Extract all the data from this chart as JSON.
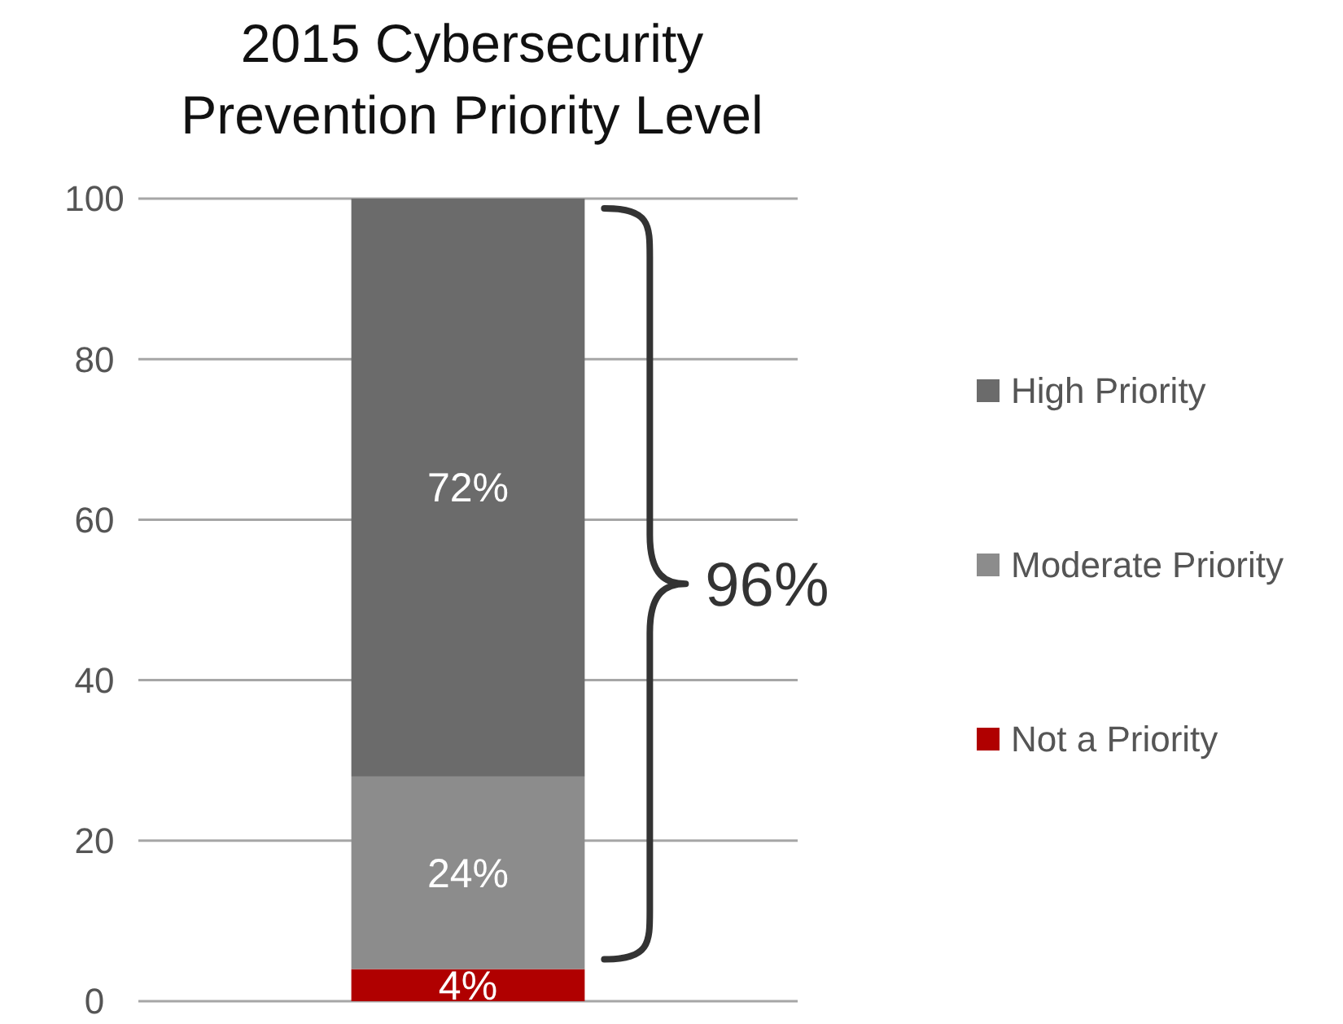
{
  "chart_data": {
    "type": "bar",
    "title": "2015 Cybersecurity Prevention Priority Level",
    "categories": [
      null
    ],
    "stacked": true,
    "ylim": [
      0,
      100
    ],
    "yticks": [
      0,
      20,
      40,
      60,
      80,
      100
    ],
    "grid": "y",
    "legend": "right",
    "series": [
      {
        "name": "Not a Priority",
        "color": "#b00000",
        "values": [
          4
        ],
        "value_labels": [
          "4%"
        ]
      },
      {
        "name": "Moderate Priority",
        "color": "#8c8c8c",
        "values": [
          24
        ],
        "value_labels": [
          "24%"
        ]
      },
      {
        "name": "High Priority",
        "color": "#6b6b6b",
        "values": [
          72
        ],
        "value_labels": [
          "72%"
        ]
      }
    ],
    "annotations": [
      "96%"
    ]
  }
}
